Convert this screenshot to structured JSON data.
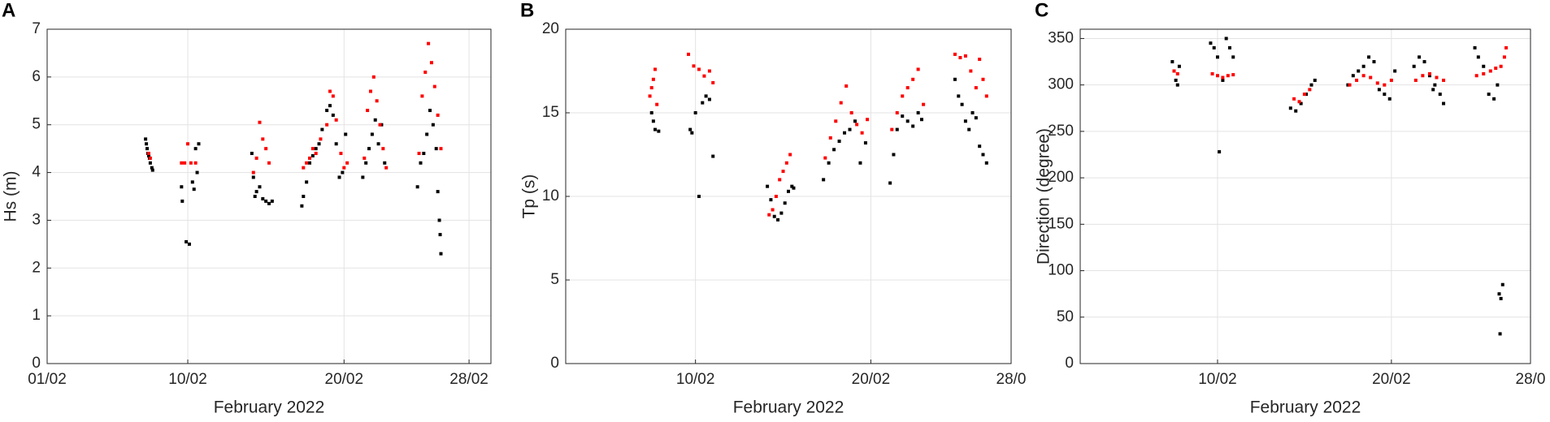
{
  "chart_data": [
    {
      "type": "scatter",
      "label": "A",
      "xlabel": "February 2022",
      "ylabel": "Hs (m)",
      "xlim": [
        1,
        29.4
      ],
      "xticks": [
        {
          "value": 1,
          "label": "01/02"
        },
        {
          "value": 10,
          "label": "10/02"
        },
        {
          "value": 20,
          "label": "20/02"
        },
        {
          "value": 28,
          "label": "28/02"
        }
      ],
      "ylim": [
        0,
        7
      ],
      "yticks": [
        0,
        1,
        2,
        3,
        4,
        5,
        6,
        7
      ],
      "grid": true,
      "series": [
        {
          "color": "#000000",
          "x": [
            7.3,
            7.35,
            7.4,
            7.45,
            7.5,
            7.55,
            7.6,
            7.7,
            7.75,
            9.6,
            9.65,
            9.9,
            10.1,
            10.3,
            10.4,
            10.6,
            10.7,
            10.5,
            14.1,
            14.2,
            14.3,
            14.4,
            14.6,
            14.8,
            15.0,
            15.2,
            15.4,
            17.3,
            17.4,
            17.6,
            17.8,
            18.0,
            18.2,
            18.4,
            18.6,
            18.9,
            19.1,
            19.3,
            19.5,
            19.7,
            19.9,
            20.1,
            21.2,
            21.4,
            21.6,
            21.8,
            22.0,
            22.2,
            22.4,
            22.6,
            24.7,
            24.9,
            25.1,
            25.3,
            25.5,
            25.7,
            25.9,
            26.0,
            26.1,
            26.15,
            26.2
          ],
          "values": [
            4.7,
            4.6,
            4.5,
            4.4,
            4.35,
            4.3,
            4.2,
            4.1,
            4.05,
            3.7,
            3.4,
            2.55,
            2.5,
            3.8,
            3.65,
            4.0,
            4.6,
            4.5,
            4.4,
            3.9,
            3.5,
            3.6,
            3.7,
            3.45,
            3.4,
            3.35,
            3.4,
            3.3,
            3.5,
            3.8,
            4.2,
            4.35,
            4.5,
            4.6,
            4.9,
            5.3,
            5.4,
            5.2,
            4.6,
            3.9,
            4.0,
            4.8,
            3.9,
            4.2,
            4.5,
            4.8,
            5.1,
            4.6,
            5.0,
            4.2,
            3.7,
            4.2,
            4.4,
            4.8,
            5.3,
            5.0,
            4.5,
            3.6,
            3.0,
            2.7,
            2.3
          ]
        },
        {
          "color": "#ff0000",
          "x": [
            7.5,
            7.6,
            9.6,
            9.8,
            10.0,
            10.2,
            10.5,
            14.2,
            14.4,
            14.6,
            14.8,
            15.0,
            15.2,
            17.4,
            17.6,
            17.8,
            18.0,
            18.2,
            18.5,
            18.9,
            19.1,
            19.3,
            19.5,
            19.8,
            20.0,
            20.2,
            21.3,
            21.5,
            21.7,
            21.9,
            22.1,
            22.3,
            22.5,
            22.7,
            24.8,
            25.0,
            25.2,
            25.4,
            25.6,
            25.8,
            26.0,
            26.2
          ],
          "values": [
            4.4,
            4.3,
            4.2,
            4.2,
            4.6,
            4.2,
            4.2,
            4.0,
            4.3,
            5.05,
            4.7,
            4.5,
            4.2,
            4.1,
            4.2,
            4.3,
            4.5,
            4.4,
            4.7,
            5.0,
            5.7,
            5.6,
            5.1,
            4.4,
            4.1,
            4.2,
            4.3,
            5.3,
            5.7,
            6.0,
            5.5,
            5.0,
            4.5,
            4.1,
            4.4,
            5.6,
            6.1,
            6.7,
            6.3,
            5.8,
            5.2,
            4.5
          ]
        }
      ]
    },
    {
      "type": "scatter",
      "label": "B",
      "xlabel": "February 2022",
      "ylabel": "Tp (s)",
      "xlim": [
        2.6,
        28
      ],
      "xticks": [
        {
          "value": 10,
          "label": "10/02"
        },
        {
          "value": 20,
          "label": "20/02"
        },
        {
          "value": 28,
          "label": "28/0"
        }
      ],
      "ylim": [
        0,
        20
      ],
      "yticks": [
        0,
        5,
        10,
        15,
        20
      ],
      "grid": true,
      "series": [
        {
          "color": "#000000",
          "x": [
            7.5,
            7.6,
            7.7,
            7.9,
            9.7,
            9.8,
            10.0,
            10.2,
            10.4,
            10.6,
            10.8,
            11.0,
            14.1,
            14.3,
            14.5,
            14.7,
            14.9,
            15.1,
            15.3,
            15.5,
            15.6,
            17.3,
            17.6,
            17.9,
            18.2,
            18.5,
            18.8,
            19.1,
            19.4,
            19.7,
            21.1,
            21.3,
            21.5,
            21.8,
            22.1,
            22.4,
            22.7,
            22.9,
            24.8,
            25.0,
            25.2,
            25.4,
            25.6,
            25.8,
            26.0,
            26.2,
            26.4,
            26.6
          ],
          "values": [
            15,
            14.5,
            14.0,
            13.9,
            14.0,
            13.8,
            15,
            10,
            15.6,
            16,
            15.8,
            12.4,
            10.6,
            9.8,
            8.8,
            8.6,
            9.0,
            9.6,
            10.3,
            10.6,
            10.5,
            11,
            12,
            12.8,
            13.3,
            13.8,
            14,
            14.5,
            12,
            13.2,
            10.8,
            12.5,
            14,
            14.8,
            14.5,
            14.2,
            15,
            14.6,
            17,
            16,
            15.5,
            14.5,
            14,
            15,
            14.7,
            13,
            12.5,
            12
          ]
        },
        {
          "color": "#ff0000",
          "x": [
            7.4,
            7.5,
            7.6,
            7.7,
            7.8,
            9.6,
            9.9,
            10.2,
            10.5,
            10.8,
            11.0,
            14.2,
            14.4,
            14.6,
            14.8,
            15.0,
            15.2,
            15.4,
            17.4,
            17.7,
            18.0,
            18.3,
            18.6,
            18.9,
            19.2,
            19.5,
            19.8,
            21.2,
            21.5,
            21.8,
            22.1,
            22.4,
            22.7,
            23.0,
            24.8,
            25.1,
            25.4,
            25.7,
            26.0,
            26.2,
            26.4,
            26.6
          ],
          "values": [
            16,
            16.5,
            17,
            17.6,
            15.5,
            18.5,
            17.8,
            17.6,
            17.2,
            17.5,
            16.8,
            8.9,
            9.2,
            10,
            11,
            11.5,
            12,
            12.5,
            12.3,
            13.5,
            14.5,
            15.6,
            16.6,
            15,
            14.3,
            13.8,
            14.6,
            14,
            15,
            16,
            16.5,
            17,
            17.6,
            15.5,
            18.5,
            18.3,
            18.4,
            17.5,
            16.5,
            18.2,
            17,
            16
          ]
        }
      ]
    },
    {
      "type": "scatter",
      "label": "C",
      "xlabel": "February 2022",
      "ylabel": "Direction (degree)",
      "xlim": [
        2.1,
        28
      ],
      "xticks": [
        {
          "value": 10,
          "label": "10/02"
        },
        {
          "value": 20,
          "label": "20/02"
        },
        {
          "value": 28,
          "label": "28/0"
        }
      ],
      "ylim": [
        0,
        360
      ],
      "yticks": [
        0,
        50,
        100,
        150,
        200,
        250,
        300,
        350
      ],
      "grid": true,
      "series": [
        {
          "color": "#000000",
          "x": [
            7.4,
            7.5,
            7.6,
            7.7,
            7.8,
            9.6,
            9.8,
            10.0,
            10.1,
            10.3,
            10.5,
            10.7,
            10.9,
            14.2,
            14.5,
            14.8,
            15.1,
            15.4,
            15.6,
            17.5,
            17.8,
            18.1,
            18.4,
            18.7,
            19.0,
            19.3,
            19.6,
            19.9,
            20.2,
            21.3,
            21.6,
            21.9,
            22.2,
            22.5,
            22.8,
            23.0,
            22.4,
            24.8,
            25.0,
            25.3,
            25.6,
            25.9,
            26.1,
            26.2,
            26.3,
            26.4,
            26.25
          ],
          "values": [
            325,
            315,
            305,
            300,
            320,
            345,
            340,
            330,
            228,
            305,
            350,
            340,
            330,
            275,
            272,
            280,
            290,
            300,
            305,
            300,
            310,
            315,
            320,
            330,
            325,
            295,
            290,
            285,
            315,
            320,
            330,
            325,
            310,
            300,
            290,
            280,
            295,
            340,
            330,
            320,
            290,
            285,
            300,
            75,
            70,
            85,
            32
          ]
        },
        {
          "color": "#ff0000",
          "x": [
            7.5,
            7.7,
            9.7,
            10.0,
            10.3,
            10.6,
            10.9,
            14.4,
            14.7,
            15.0,
            15.3,
            17.6,
            18.0,
            18.4,
            18.8,
            19.2,
            19.6,
            20.0,
            21.4,
            21.8,
            22.2,
            22.6,
            23.0,
            24.9,
            25.3,
            25.7,
            26.0,
            26.3,
            26.5,
            26.6
          ],
          "values": [
            315,
            312,
            312,
            310,
            308,
            310,
            311,
            285,
            282,
            290,
            295,
            300,
            305,
            310,
            308,
            302,
            300,
            305,
            305,
            310,
            312,
            308,
            305,
            310,
            312,
            315,
            318,
            320,
            330,
            340
          ]
        }
      ]
    }
  ]
}
